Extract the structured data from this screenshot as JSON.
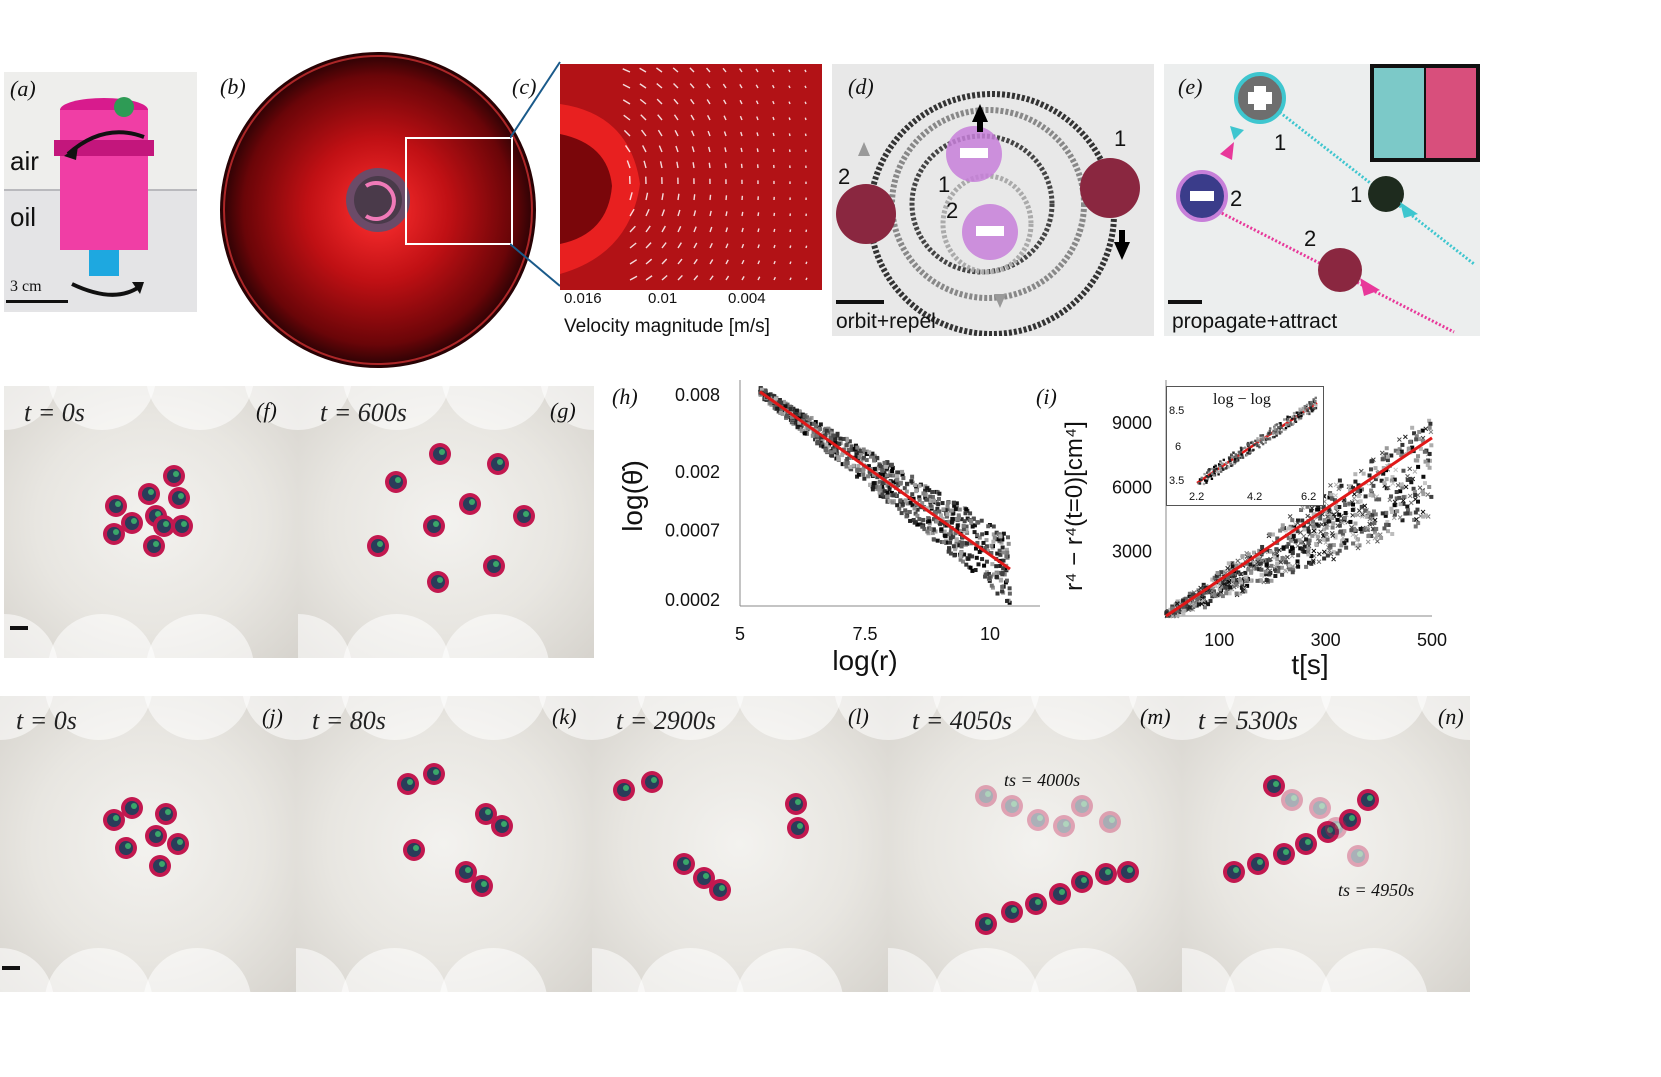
{
  "panels": {
    "a": {
      "label": "(a)",
      "air": "air",
      "oil": "oil",
      "scale": "3 cm"
    },
    "b": {
      "label": "(b)"
    },
    "c": {
      "label": "(c)",
      "ticks": [
        "0.016",
        "0.01",
        "0.004"
      ],
      "caption": "Velocity magnitude [m/s]"
    },
    "d": {
      "label": "(d)",
      "caption": "orbit+repel",
      "n1a": "1",
      "n2a": "2",
      "n1b": "1",
      "n2b": "2"
    },
    "e": {
      "label": "(e)",
      "caption": "propagate+attract",
      "n1a": "1",
      "n2a": "2",
      "n1b": "1",
      "n2b": "2"
    },
    "f": {
      "label": "(f)",
      "time": "t = 0s"
    },
    "g": {
      "label": "(g)",
      "time": "t = 600s"
    },
    "h": {
      "label": "(h)"
    },
    "i": {
      "label": "(i)",
      "inset_title": "log − log",
      "inset_yticks": [
        "8.5",
        "6",
        "3.5"
      ],
      "inset_xticks": [
        "2.2",
        "4.2",
        "6.2"
      ]
    },
    "j": {
      "label": "(j)",
      "time": "t = 0s"
    },
    "k": {
      "label": "(k)",
      "time": "t = 80s"
    },
    "l": {
      "label": "(l)",
      "time": "t = 2900s"
    },
    "m": {
      "label": "(m)",
      "time": "t = 4050s",
      "ts": "ts = 4000s"
    },
    "n": {
      "label": "(n)",
      "time": "t = 5300s",
      "ts": "ts = 4950s"
    }
  },
  "chart_data": [
    {
      "type": "scatter",
      "panel": "h",
      "xlabel": "log(r)",
      "ylabel": "log(θ̇)",
      "x_ticks": [
        "5",
        "7.5",
        "10"
      ],
      "y_ticks": [
        "0.008",
        "0.002",
        "0.0007",
        "0.0002"
      ],
      "xlim": [
        5,
        11
      ],
      "fit_line": {
        "x": [
          5.4,
          10.4
        ],
        "y": [
          0.0085,
          0.00035
        ],
        "color": "#e01818"
      },
      "grid": false
    },
    {
      "type": "scatter",
      "panel": "i",
      "xlabel": "t[s]",
      "ylabel": "r⁴ − r⁴(t=0)[cm⁴]",
      "x_ticks": [
        "100",
        "300",
        "500"
      ],
      "y_ticks": [
        "9000",
        "6000",
        "3000"
      ],
      "xlim": [
        0,
        500
      ],
      "ylim": [
        0,
        11000
      ],
      "fit_line": {
        "x": [
          0,
          500
        ],
        "y": [
          0,
          8300
        ],
        "color": "#e01818"
      },
      "grid": false
    }
  ],
  "colors": {
    "pink": "#e8389a",
    "cyan": "#3ec6cf",
    "red_field": "#c8141c",
    "fit": "#e01818"
  }
}
